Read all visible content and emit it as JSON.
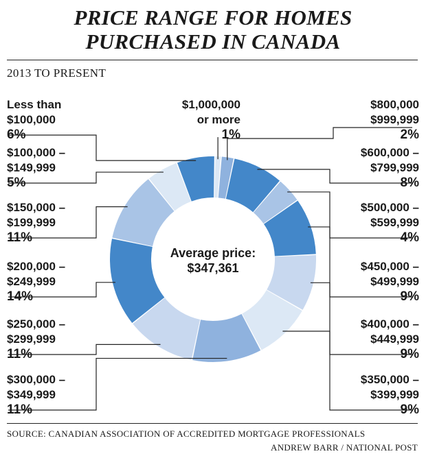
{
  "header": {
    "title_line1": "PRICE RANGE FOR HOMES",
    "title_line2": "PURCHASED IN CANADA",
    "subtitle": "2013 TO PRESENT"
  },
  "center_label": {
    "line1": "Average price:",
    "line2": "$347,361"
  },
  "chart_data": {
    "type": "pie",
    "donut": true,
    "title": "PRICE RANGE FOR HOMES PURCHASED IN CANADA",
    "subtitle": "2013 TO PRESENT",
    "slices": [
      {
        "label_lines": [
          "$1,000,000",
          "or more"
        ],
        "value": 1,
        "pct_label": "1%",
        "color": "#dce8f5"
      },
      {
        "label_lines": [
          "$800,000",
          "$999,999"
        ],
        "value": 2,
        "pct_label": "2%",
        "color": "#8fb2de"
      },
      {
        "label_lines": [
          "$600,000 –",
          "$799,999"
        ],
        "value": 8,
        "pct_label": "8%",
        "color": "#4387c9"
      },
      {
        "label_lines": [
          "$500,000 –",
          "$599,999"
        ],
        "value": 4,
        "pct_label": "4%",
        "color": "#a9c4e6"
      },
      {
        "label_lines": [
          "$450,000 –",
          "$499,999"
        ],
        "value": 9,
        "pct_label": "9%",
        "color": "#4387c9"
      },
      {
        "label_lines": [
          "$400,000 –",
          "$449,999"
        ],
        "value": 9,
        "pct_label": "9%",
        "color": "#c8d8ef"
      },
      {
        "label_lines": [
          "$350,000 –",
          "$399,999"
        ],
        "value": 9,
        "pct_label": "9%",
        "color": "#dce8f5"
      },
      {
        "label_lines": [
          "$300,000 –",
          "$349,999"
        ],
        "value": 11,
        "pct_label": "11%",
        "color": "#8fb2de"
      },
      {
        "label_lines": [
          "$250,000 –",
          "$299,999"
        ],
        "value": 11,
        "pct_label": "11%",
        "color": "#c8d8ef"
      },
      {
        "label_lines": [
          "$200,000 –",
          "$249,999"
        ],
        "value": 14,
        "pct_label": "14%",
        "color": "#4387c9"
      },
      {
        "label_lines": [
          "$150,000 –",
          "$199,999"
        ],
        "value": 11,
        "pct_label": "11%",
        "color": "#a9c4e6"
      },
      {
        "label_lines": [
          "$100,000 –",
          "$149,999"
        ],
        "value": 5,
        "pct_label": "5%",
        "color": "#dce8f5"
      },
      {
        "label_lines": [
          "Less than",
          "$100,000"
        ],
        "value": 6,
        "pct_label": "6%",
        "color": "#4387c9"
      }
    ]
  },
  "footer": {
    "source": "SOURCE: CANADIAN ASSOCIATION OF ACCREDITED MORTGAGE PROFESSIONALS",
    "credit": "ANDREW BARR / NATIONAL POST"
  }
}
